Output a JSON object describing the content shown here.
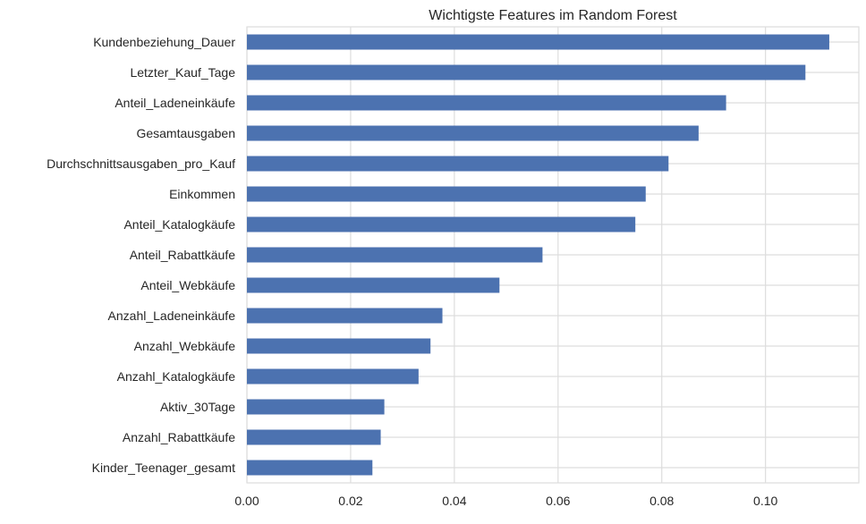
{
  "chart_data": {
    "type": "bar",
    "orientation": "horizontal",
    "title": "Wichtigste Features im Random Forest",
    "xlabel": "",
    "ylabel": "",
    "xlim": [
      0,
      0.118
    ],
    "x_ticks": [
      "0.00",
      "0.02",
      "0.04",
      "0.06",
      "0.08",
      "0.10"
    ],
    "grid": true,
    "bar_color": "#4c72b0",
    "categories": [
      "Kundenbeziehung_Dauer",
      "Letzter_Kauf_Tage",
      "Anteil_Ladeneinkäufe",
      "Gesamtausgaben",
      "Durchschnittsausgaben_pro_Kauf",
      "Einkommen",
      "Anteil_Katalogkäufe",
      "Anteil_Rabattkäufe",
      "Anteil_Webkäufe",
      "Anzahl_Ladeneinkäufe",
      "Anzahl_Webkäufe",
      "Anzahl_Katalogkäufe",
      "Aktiv_30Tage",
      "Anzahl_Rabattkäufe",
      "Kinder_Teenager_gesamt"
    ],
    "values": [
      0.1123,
      0.1077,
      0.0924,
      0.0871,
      0.0813,
      0.0769,
      0.0749,
      0.057,
      0.0487,
      0.0377,
      0.0354,
      0.0331,
      0.0265,
      0.0258,
      0.0242
    ]
  }
}
